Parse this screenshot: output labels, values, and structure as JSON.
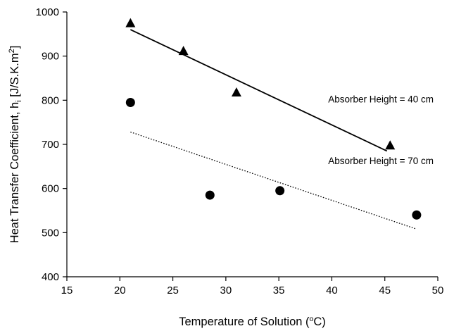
{
  "chart_data": {
    "type": "scatter",
    "xlabel": {
      "main": "Temperature of Solution (",
      "sup": "o",
      "tail": "C)"
    },
    "ylabel": {
      "main": "Heat Transfer Coefficient, h",
      "sub": "i",
      "mid": " [J/S.K.m",
      "sup": "2",
      "tail": "]"
    },
    "xlim": [
      15,
      50
    ],
    "ylim": [
      400,
      1000
    ],
    "x_ticks": [
      15,
      20,
      25,
      30,
      35,
      40,
      45,
      50
    ],
    "y_ticks": [
      400,
      500,
      600,
      700,
      800,
      900,
      1000
    ],
    "grid": false,
    "series": [
      {
        "marker": "triangle",
        "color": "#000000",
        "points": [
          {
            "x": 21,
            "y": 975
          },
          {
            "x": 26,
            "y": 912
          },
          {
            "x": 31,
            "y": 818
          },
          {
            "x": 45.5,
            "y": 698
          }
        ],
        "trendline": {
          "style": "solid",
          "from": [
            21,
            960
          ],
          "to": [
            45.2,
            685
          ]
        }
      },
      {
        "marker": "circle",
        "color": "#000000",
        "points": [
          {
            "x": 21,
            "y": 795
          },
          {
            "x": 28.5,
            "y": 585
          },
          {
            "x": 35.1,
            "y": 595
          },
          {
            "x": 48,
            "y": 540
          }
        ],
        "trendline": {
          "style": "dotted",
          "from": [
            21,
            728
          ],
          "to": [
            48,
            508
          ]
        }
      }
    ],
    "annotations": [
      {
        "text": "Absorber Height = 40 cm",
        "x": 49.6,
        "y": 795
      },
      {
        "text": "Absorber Height = 70 cm",
        "x": 49.6,
        "y": 655
      }
    ]
  }
}
